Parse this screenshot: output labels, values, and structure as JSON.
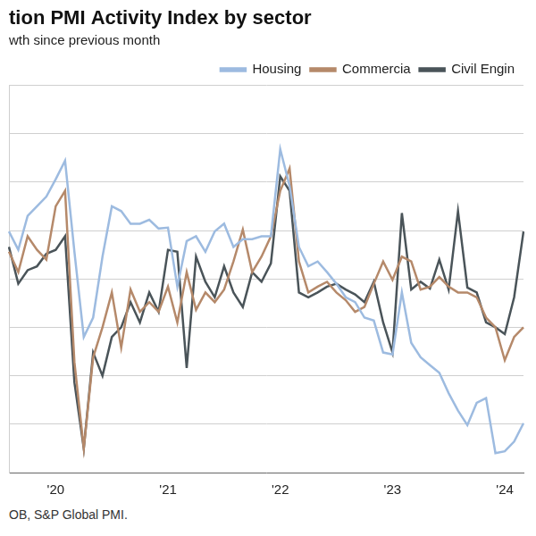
{
  "chart_data": {
    "type": "line",
    "title": "tion PMI Activity Index by sector",
    "subtitle": "wth since previous month",
    "source": "OB, S&P Global PMI.",
    "categories": [
      null,
      null,
      null,
      null,
      null,
      "'20",
      null,
      null,
      null,
      null,
      null,
      null,
      null,
      null,
      null,
      null,
      null,
      "'21",
      null,
      null,
      null,
      null,
      null,
      null,
      null,
      null,
      null,
      null,
      null,
      "'22",
      null,
      null,
      null,
      null,
      null,
      null,
      null,
      null,
      null,
      null,
      null,
      "'23",
      null,
      null,
      null,
      null,
      null,
      null,
      null,
      null,
      null,
      null,
      null,
      "'24",
      null,
      null
    ],
    "series": [
      {
        "name": "Housing",
        "color": "#9dbbe0",
        "values": [
          54.9,
          53.0,
          56.5,
          57.5,
          58.5,
          60.3,
          62.2,
          52.8,
          44.0,
          46.0,
          52.3,
          57.5,
          57.0,
          55.7,
          55.7,
          56.1,
          55.2,
          55.3,
          49.2,
          53.9,
          54.4,
          52.8,
          54.9,
          55.7,
          53.3,
          54.1,
          54.1,
          54.4,
          54.4,
          63.4,
          59.6,
          53.3,
          51.3,
          51.8,
          50.7,
          49.5,
          48.1,
          47.6,
          46.0,
          45.7,
          42.4,
          42.2,
          48.6,
          43.4,
          41.9,
          41.1,
          40.3,
          38.2,
          36.4,
          34.9,
          37.2,
          37.7,
          32.0,
          32.2,
          33.2,
          35.1
        ]
      },
      {
        "name": "Commercia",
        "color": "#b5896a",
        "values": [
          52.8,
          50.7,
          54.4,
          53.0,
          52.0,
          57.5,
          59.1,
          41.4,
          32.5,
          41.9,
          45.0,
          48.6,
          42.9,
          48.9,
          46.6,
          47.6,
          46.6,
          49.2,
          45.5,
          50.7,
          46.8,
          48.6,
          47.6,
          48.9,
          51.8,
          55.1,
          50.7,
          52.3,
          54.4,
          59.1,
          61.4,
          51.8,
          48.6,
          49.2,
          49.7,
          48.6,
          47.8,
          46.6,
          47.1,
          49.5,
          51.8,
          49.9,
          52.3,
          51.8,
          48.9,
          49.2,
          50.2,
          49.2,
          48.6,
          48.6,
          48.1,
          46.0,
          45.0,
          41.6,
          44.0,
          45.0
        ]
      },
      {
        "name": "Civil Engin",
        "color": "#4a5459",
        "values": [
          53.3,
          49.5,
          50.9,
          51.3,
          52.6,
          53.0,
          54.4,
          39.3,
          32.5,
          42.4,
          40.0,
          44.0,
          45.0,
          47.6,
          45.5,
          48.6,
          46.6,
          53.0,
          52.8,
          40.8,
          52.3,
          49.7,
          48.1,
          51.3,
          48.6,
          47.1,
          50.7,
          49.7,
          51.6,
          60.6,
          59.1,
          48.6,
          48.1,
          48.6,
          49.2,
          49.5,
          48.9,
          48.4,
          47.6,
          49.7,
          45.5,
          42.4,
          56.8,
          48.9,
          49.7,
          49.0,
          52.0,
          48.9,
          57.0,
          49.1,
          48.6,
          45.5,
          45.0,
          44.3,
          48.1,
          54.9
        ]
      }
    ],
    "ylim": [
      30,
      70
    ],
    "yticks": [
      30,
      35,
      40,
      45,
      50,
      55,
      60,
      65,
      70
    ],
    "grid": true,
    "legend": "top right",
    "tick_labels": "x"
  }
}
